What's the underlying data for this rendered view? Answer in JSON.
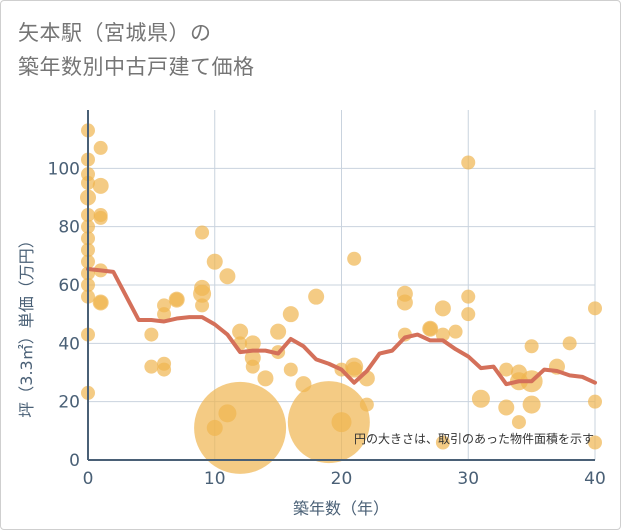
{
  "chart_data": {
    "type": "scatter",
    "title_line1": "矢本駅（宮城県）の",
    "title_line2": "築年数別中古戸建て価格",
    "xlabel": "築年数（年）",
    "ylabel": "坪（3.3㎡）単価（万円）",
    "xlim": [
      0,
      40
    ],
    "ylim": [
      0,
      120
    ],
    "xticks": [
      0,
      10,
      20,
      30,
      40
    ],
    "yticks": [
      0,
      20,
      40,
      60,
      80,
      100
    ],
    "grid": true,
    "note": "円の大きさは、取引のあった物件面積を示す",
    "colors": {
      "bubble": "#f0b550",
      "line": "#d4705a",
      "grid": "#c9d3de",
      "axis": "#4a6076"
    },
    "scatter": [
      {
        "x": 0,
        "y": 113,
        "s": 7
      },
      {
        "x": 0,
        "y": 103,
        "s": 7
      },
      {
        "x": 0,
        "y": 98,
        "s": 7
      },
      {
        "x": 0,
        "y": 95,
        "s": 7
      },
      {
        "x": 0,
        "y": 90,
        "s": 8
      },
      {
        "x": 0,
        "y": 84,
        "s": 7
      },
      {
        "x": 0,
        "y": 80,
        "s": 7
      },
      {
        "x": 0,
        "y": 76,
        "s": 7
      },
      {
        "x": 0,
        "y": 72,
        "s": 7
      },
      {
        "x": 0,
        "y": 68,
        "s": 7
      },
      {
        "x": 0,
        "y": 64,
        "s": 7
      },
      {
        "x": 0,
        "y": 60,
        "s": 7
      },
      {
        "x": 0,
        "y": 56,
        "s": 7
      },
      {
        "x": 0,
        "y": 43,
        "s": 7
      },
      {
        "x": 0,
        "y": 23,
        "s": 7
      },
      {
        "x": 1,
        "y": 107,
        "s": 7
      },
      {
        "x": 1,
        "y": 94,
        "s": 8
      },
      {
        "x": 1,
        "y": 84,
        "s": 7
      },
      {
        "x": 1,
        "y": 83,
        "s": 7
      },
      {
        "x": 1,
        "y": 65,
        "s": 7
      },
      {
        "x": 1,
        "y": 54,
        "s": 8
      },
      {
        "x": 1,
        "y": 54,
        "s": 7
      },
      {
        "x": 5,
        "y": 43,
        "s": 7
      },
      {
        "x": 5,
        "y": 32,
        "s": 7
      },
      {
        "x": 6,
        "y": 53,
        "s": 7
      },
      {
        "x": 6,
        "y": 50,
        "s": 7
      },
      {
        "x": 6,
        "y": 33,
        "s": 7
      },
      {
        "x": 6,
        "y": 31,
        "s": 7
      },
      {
        "x": 7,
        "y": 55,
        "s": 8
      },
      {
        "x": 7,
        "y": 55,
        "s": 7
      },
      {
        "x": 9,
        "y": 78,
        "s": 7
      },
      {
        "x": 9,
        "y": 59,
        "s": 8
      },
      {
        "x": 9,
        "y": 57,
        "s": 9
      },
      {
        "x": 9,
        "y": 53,
        "s": 7
      },
      {
        "x": 10,
        "y": 68,
        "s": 8
      },
      {
        "x": 10,
        "y": 11,
        "s": 8
      },
      {
        "x": 11,
        "y": 63,
        "s": 8
      },
      {
        "x": 11,
        "y": 16,
        "s": 9
      },
      {
        "x": 12,
        "y": 44,
        "s": 8
      },
      {
        "x": 12,
        "y": 40,
        "s": 7
      },
      {
        "x": 12,
        "y": 11,
        "s": 46
      },
      {
        "x": 13,
        "y": 40,
        "s": 8
      },
      {
        "x": 13,
        "y": 35,
        "s": 8
      },
      {
        "x": 13,
        "y": 32,
        "s": 7
      },
      {
        "x": 14,
        "y": 28,
        "s": 8
      },
      {
        "x": 15,
        "y": 44,
        "s": 8
      },
      {
        "x": 15,
        "y": 37,
        "s": 7
      },
      {
        "x": 16,
        "y": 50,
        "s": 8
      },
      {
        "x": 16,
        "y": 31,
        "s": 7
      },
      {
        "x": 17,
        "y": 26,
        "s": 8
      },
      {
        "x": 18,
        "y": 56,
        "s": 8
      },
      {
        "x": 19,
        "y": 13,
        "s": 41
      },
      {
        "x": 20,
        "y": 31,
        "s": 7
      },
      {
        "x": 20,
        "y": 13,
        "s": 10
      },
      {
        "x": 21,
        "y": 69,
        "s": 7
      },
      {
        "x": 21,
        "y": 32,
        "s": 9
      },
      {
        "x": 21,
        "y": 31,
        "s": 8
      },
      {
        "x": 22,
        "y": 28,
        "s": 8
      },
      {
        "x": 22,
        "y": 19,
        "s": 7
      },
      {
        "x": 25,
        "y": 57,
        "s": 8
      },
      {
        "x": 25,
        "y": 54,
        "s": 8
      },
      {
        "x": 25,
        "y": 43,
        "s": 7
      },
      {
        "x": 27,
        "y": 45,
        "s": 8
      },
      {
        "x": 27,
        "y": 45,
        "s": 7
      },
      {
        "x": 28,
        "y": 52,
        "s": 8
      },
      {
        "x": 28,
        "y": 43,
        "s": 7
      },
      {
        "x": 28,
        "y": 6,
        "s": 7
      },
      {
        "x": 29,
        "y": 44,
        "s": 7
      },
      {
        "x": 30,
        "y": 102,
        "s": 7
      },
      {
        "x": 30,
        "y": 56,
        "s": 7
      },
      {
        "x": 30,
        "y": 50,
        "s": 7
      },
      {
        "x": 31,
        "y": 21,
        "s": 9
      },
      {
        "x": 33,
        "y": 31,
        "s": 7
      },
      {
        "x": 33,
        "y": 18,
        "s": 8
      },
      {
        "x": 34,
        "y": 30,
        "s": 8
      },
      {
        "x": 34,
        "y": 27,
        "s": 9
      },
      {
        "x": 34,
        "y": 13,
        "s": 7
      },
      {
        "x": 35,
        "y": 39,
        "s": 7
      },
      {
        "x": 35,
        "y": 27,
        "s": 11
      },
      {
        "x": 35,
        "y": 19,
        "s": 9
      },
      {
        "x": 37,
        "y": 32,
        "s": 8
      },
      {
        "x": 38,
        "y": 40,
        "s": 7
      },
      {
        "x": 40,
        "y": 52,
        "s": 7
      },
      {
        "x": 40,
        "y": 20,
        "s": 7
      },
      {
        "x": 40,
        "y": 6,
        "s": 7
      }
    ],
    "line": {
      "x": [
        0,
        1,
        2,
        4,
        5,
        6,
        7,
        8,
        9,
        10,
        11,
        12,
        13,
        14,
        15,
        16,
        17,
        18,
        19,
        20,
        21,
        22,
        23,
        24,
        25,
        26,
        27,
        28,
        29,
        30,
        31,
        32,
        33,
        34,
        35,
        36,
        37,
        38,
        39,
        40
      ],
      "y": [
        65.5,
        65,
        64.5,
        48,
        48,
        47.5,
        48.5,
        49,
        49,
        46.5,
        43,
        37,
        37.5,
        37.5,
        36.5,
        41.5,
        39,
        34.5,
        33,
        31,
        26.5,
        30.5,
        36.5,
        37.5,
        42,
        43,
        41,
        41,
        38,
        35.5,
        31.5,
        32,
        26,
        27,
        27,
        31,
        30.5,
        29,
        28.5,
        26.5
      ]
    }
  }
}
